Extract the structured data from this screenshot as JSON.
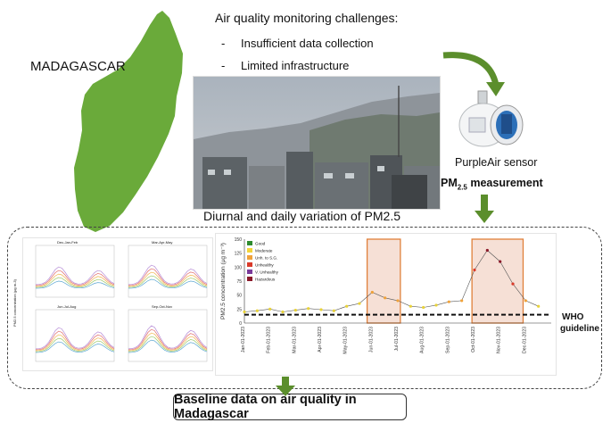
{
  "country_label": "MADAGASCAR",
  "challenges": {
    "title": "Air quality monitoring challenges:",
    "items": [
      {
        "bullet": "-",
        "text": "Insufficient data collection"
      },
      {
        "bullet": "-",
        "text": "Limited infrastructure"
      }
    ]
  },
  "sensor": {
    "label": "PurpleAir sensor",
    "measurement_prefix": "PM",
    "measurement_sub": "2.5",
    "measurement_suffix": " measurement"
  },
  "variation_title": "Diurnal and daily variation of PM2.5",
  "who_label": {
    "line1": "WHO",
    "line2": "guideline"
  },
  "baseline": "Baseline data on air quality in Madagascar",
  "colors": {
    "map_green": "#6aaa3a",
    "arrow_green": "#5b8e2c",
    "highlight_orange": "#e0803a",
    "highlight_fill": "#f6e0d6"
  },
  "diurnal_panels": {
    "titles": [
      "Dec-Jan-Feb",
      "Mar-Apr-May",
      "Jun-Jul-Aug",
      "Sep-Oct-Nov"
    ],
    "ylabel": "PM2.5 concentration (µg m-3)"
  },
  "chart_data": {
    "type": "scatter",
    "ylabel": "PM2.5 concentration (µg m⁻³)",
    "ylim": [
      0,
      150
    ],
    "yticks": [
      0,
      25,
      50,
      75,
      100,
      125,
      150
    ],
    "xticks": [
      "Jan-01-2023",
      "Feb-01-2023",
      "Mar-01-2023",
      "Apr-01-2023",
      "May-01-2023",
      "Jun-01-2023",
      "Jul-01-2023",
      "Aug-01-2023",
      "Sep-01-2023",
      "Oct-01-2023",
      "Nov-01-2023",
      "Dec-01-2023"
    ],
    "legend": [
      {
        "name": "Good",
        "color": "#2e8b2e"
      },
      {
        "name": "Moderate",
        "color": "#f2d43a"
      },
      {
        "name": "Unh. to S.G.",
        "color": "#f0a23a"
      },
      {
        "name": "Unhealthy",
        "color": "#d93a2a"
      },
      {
        "name": "V. Unhealthy",
        "color": "#7a3a9a"
      },
      {
        "name": "Hazardous",
        "color": "#8b1a2a"
      }
    ],
    "legend_position": "top-left",
    "who_guideline": 15,
    "highlights": [
      {
        "start_month": 4.8,
        "end_month": 6.1
      },
      {
        "start_month": 8.9,
        "end_month": 10.9
      }
    ],
    "series": [
      {
        "month_positions": [
          0.0,
          0.5,
          1.0,
          1.5,
          2.0,
          2.5,
          3.0,
          3.5,
          4.0,
          4.5,
          5.0,
          5.5,
          6.0,
          6.5,
          7.0,
          7.5,
          8.0,
          8.5,
          9.0,
          9.5,
          10.0,
          10.5,
          11.0,
          11.5
        ],
        "values": [
          20,
          22,
          25,
          20,
          23,
          26,
          24,
          22,
          30,
          35,
          55,
          45,
          40,
          30,
          28,
          32,
          38,
          40,
          95,
          130,
          110,
          70,
          40,
          30
        ]
      }
    ]
  }
}
